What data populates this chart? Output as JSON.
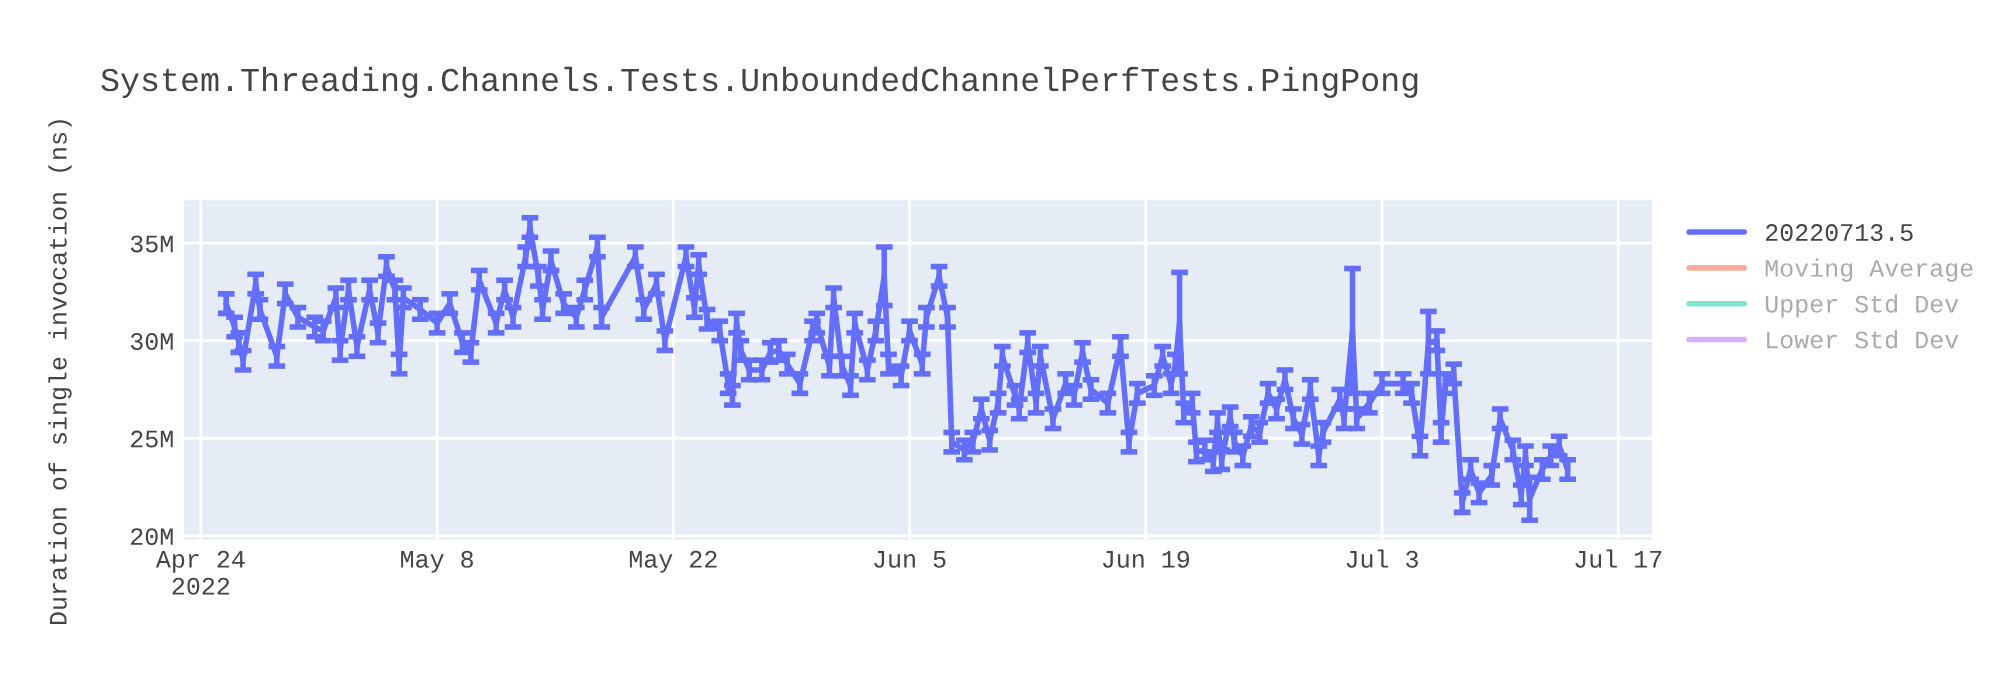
{
  "chart_data": {
    "type": "line",
    "title": "System.Threading.Channels.Tests.UnboundedChannelPerfTests.PingPong",
    "ylabel": "Duration of single invocation (ns)",
    "x": [
      "2022-04-25T12:00",
      "2022-04-26T00:00",
      "2022-04-26T06:00",
      "2022-04-26T12:00",
      "2022-04-27T06:00",
      "2022-04-27T12:00",
      "2022-04-28T12:00",
      "2022-04-29T00:00",
      "2022-04-29T18:00",
      "2022-04-30T18:00",
      "2022-05-01T06:00",
      "2022-05-02T00:00",
      "2022-05-02T06:00",
      "2022-05-02T18:00",
      "2022-05-03T06:00",
      "2022-05-04T00:00",
      "2022-05-04T12:00",
      "2022-05-05T00:00",
      "2022-05-05T12:00",
      "2022-05-05T18:00",
      "2022-05-06T00:00",
      "2022-05-07T00:00",
      "2022-05-08T00:00",
      "2022-05-08T18:00",
      "2022-05-09T12:00",
      "2022-05-10T00:00",
      "2022-05-10T12:00",
      "2022-05-11T12:00",
      "2022-05-12T00:00",
      "2022-05-12T12:00",
      "2022-05-13T06:00",
      "2022-05-13T12:00",
      "2022-05-14T00:00",
      "2022-05-14T06:00",
      "2022-05-14T18:00",
      "2022-05-15T12:00",
      "2022-05-16T06:00",
      "2022-05-16T18:00",
      "2022-05-17T12:00",
      "2022-05-17T18:00",
      "2022-05-19T18:00",
      "2022-05-20T06:00",
      "2022-05-21T00:00",
      "2022-05-21T12:00",
      "2022-05-22T18:00",
      "2022-05-23T06:00",
      "2022-05-23T12:00",
      "2022-05-24T00:00",
      "2022-05-24T18:00",
      "2022-05-25T06:00",
      "2022-05-25T12:00",
      "2022-05-25T18:00",
      "2022-05-26T00:00",
      "2022-05-26T12:00",
      "2022-05-27T06:00",
      "2022-05-27T18:00",
      "2022-05-28T06:00",
      "2022-05-28T18:00",
      "2022-05-29T12:00",
      "2022-05-30T06:00",
      "2022-05-30T12:00",
      "2022-05-31T06:00",
      "2022-05-31T12:00",
      "2022-06-01T00:00",
      "2022-06-01T12:00",
      "2022-06-01T18:00",
      "2022-06-02T12:00",
      "2022-06-03T00:00",
      "2022-06-03T12:00",
      "2022-06-03T18:00",
      "2022-06-04T12:00",
      "2022-06-05T00:00",
      "2022-06-05T18:00",
      "2022-06-06T00:00",
      "2022-06-06T18:00",
      "2022-06-07T06:00",
      "2022-06-07T12:00",
      "2022-06-08T06:00",
      "2022-06-08T18:00",
      "2022-06-09T06:00",
      "2022-06-09T18:00",
      "2022-06-10T06:00",
      "2022-06-10T12:00",
      "2022-06-11T06:00",
      "2022-06-11T12:00",
      "2022-06-12T00:00",
      "2022-06-12T12:00",
      "2022-06-12T18:00",
      "2022-06-13T12:00",
      "2022-06-14T06:00",
      "2022-06-14T18:00",
      "2022-06-15T06:00",
      "2022-06-15T18:00",
      "2022-06-16T18:00",
      "2022-06-17T12:00",
      "2022-06-18T00:00",
      "2022-06-18T12:00",
      "2022-06-19T12:00",
      "2022-06-20T00:00",
      "2022-06-20T12:00",
      "2022-06-20T18:00",
      "2022-06-21T00:00",
      "2022-06-21T06:00",
      "2022-06-21T18:00",
      "2022-06-22T00:00",
      "2022-06-22T12:00",
      "2022-06-23T00:00",
      "2022-06-23T06:00",
      "2022-06-23T12:00",
      "2022-06-24T00:00",
      "2022-06-24T06:00",
      "2022-06-24T18:00",
      "2022-06-25T06:00",
      "2022-06-25T18:00",
      "2022-06-26T06:00",
      "2022-06-26T18:00",
      "2022-06-27T06:00",
      "2022-06-27T18:00",
      "2022-06-28T06:00",
      "2022-06-28T18:00",
      "2022-06-29T06:00",
      "2022-06-29T12:00",
      "2022-06-30T12:00",
      "2022-06-30T18:00",
      "2022-07-01T06:00",
      "2022-07-01T12:00",
      "2022-07-02T06:00",
      "2022-07-03T00:00",
      "2022-07-04T06:00",
      "2022-07-04T18:00",
      "2022-07-05T06:00",
      "2022-07-05T18:00",
      "2022-07-06T06:00",
      "2022-07-06T12:00",
      "2022-07-06T18:00",
      "2022-07-07T06:00",
      "2022-07-07T18:00",
      "2022-07-08T06:00",
      "2022-07-08T18:00",
      "2022-07-09T12:00",
      "2022-07-10T00:00",
      "2022-07-10T18:00",
      "2022-07-11T06:00",
      "2022-07-11T12:00",
      "2022-07-11T18:00",
      "2022-07-12T12:00",
      "2022-07-13T00:00",
      "2022-07-13T12:00",
      "2022-07-14T00:00"
    ],
    "series": [
      {
        "name": "20220713.5",
        "color": "#636efa",
        "values": [
          31.9,
          30.7,
          29.9,
          29.0,
          32.9,
          31.6,
          29.2,
          32.4,
          31.2,
          30.7,
          30.5,
          32.2,
          29.5,
          32.6,
          29.7,
          32.6,
          30.4,
          33.8,
          32.6,
          28.8,
          32.2,
          31.6,
          30.9,
          31.9,
          29.9,
          29.4,
          33.1,
          30.9,
          32.6,
          31.2,
          34.3,
          35.8,
          33.3,
          31.6,
          34.1,
          31.9,
          31.2,
          32.6,
          34.8,
          31.2,
          34.3,
          31.6,
          32.9,
          30.0,
          34.3,
          31.7,
          33.9,
          31.1,
          30.5,
          27.8,
          27.2,
          30.9,
          29.5,
          28.5,
          28.5,
          29.4,
          29.5,
          28.8,
          27.8,
          30.5,
          30.9,
          28.7,
          32.2,
          28.7,
          27.7,
          30.9,
          28.5,
          30.5,
          33.3,
          28.8,
          28.2,
          30.5,
          28.8,
          31.2,
          33.3,
          31.2,
          24.8,
          24.4,
          24.8,
          26.5,
          24.9,
          26.8,
          29.2,
          27.2,
          26.5,
          29.9,
          26.8,
          29.2,
          26.0,
          27.8,
          27.2,
          29.4,
          27.5,
          26.8,
          29.7,
          24.8,
          27.3,
          27.7,
          29.2,
          27.8,
          28.8,
          30.9,
          26.3,
          26.8,
          24.3,
          24.4,
          23.8,
          25.8,
          23.9,
          26.1,
          24.8,
          24.1,
          25.6,
          25.3,
          27.3,
          26.5,
          28.0,
          26.0,
          25.2,
          27.5,
          24.1,
          25.3,
          27.0,
          26.0,
          30.5,
          26.0,
          26.8,
          27.8,
          27.8,
          27.3,
          24.6,
          29.9,
          30.0,
          25.3,
          27.8,
          28.3,
          21.7,
          23.4,
          22.2,
          23.1,
          26.0,
          24.4,
          22.1,
          24.1,
          21.9,
          23.4,
          24.1,
          24.6,
          23.4
        ],
        "errors": [
          0.5,
          0.5,
          0.5,
          0.5,
          0.5,
          0.5,
          0.5,
          0.5,
          0.5,
          0.5,
          0.5,
          0.5,
          0.5,
          0.5,
          0.5,
          0.5,
          0.5,
          0.5,
          0.5,
          0.5,
          0.5,
          0.5,
          0.5,
          0.5,
          0.5,
          0.5,
          0.5,
          0.5,
          0.5,
          0.5,
          0.5,
          0.5,
          0.5,
          0.5,
          0.5,
          0.5,
          0.5,
          0.5,
          0.5,
          0.5,
          0.5,
          0.5,
          0.5,
          0.5,
          0.5,
          0.5,
          0.5,
          0.5,
          0.5,
          0.5,
          0.5,
          0.5,
          0.5,
          0.5,
          0.5,
          0.5,
          0.5,
          0.5,
          0.5,
          0.5,
          0.5,
          0.5,
          0.5,
          0.5,
          0.5,
          0.5,
          0.5,
          0.5,
          1.5,
          0.5,
          0.5,
          0.5,
          0.5,
          0.5,
          0.5,
          0.5,
          0.5,
          0.5,
          0.5,
          0.5,
          0.5,
          0.5,
          0.5,
          0.5,
          0.5,
          0.5,
          0.5,
          0.5,
          0.5,
          0.5,
          0.5,
          0.5,
          0.5,
          0.5,
          0.5,
          0.5,
          0.5,
          0.5,
          0.5,
          0.5,
          0.5,
          2.6,
          0.5,
          0.5,
          0.5,
          0.5,
          0.5,
          0.5,
          0.5,
          0.5,
          0.5,
          0.5,
          0.5,
          0.5,
          0.5,
          0.5,
          0.5,
          0.5,
          0.5,
          0.5,
          0.5,
          0.5,
          0.5,
          0.5,
          3.2,
          0.5,
          0.5,
          0.5,
          0.5,
          0.5,
          0.5,
          1.6,
          0.5,
          0.5,
          0.5,
          0.5,
          0.5,
          0.5,
          0.5,
          0.5,
          0.5,
          0.5,
          0.5,
          0.5,
          1.1,
          0.5,
          0.5,
          0.5,
          0.5
        ]
      },
      {
        "name": "Moving Average",
        "color": "#f7ab9d",
        "values": [
          null,
          null,
          null,
          null,
          null,
          null,
          null,
          null,
          null,
          null,
          null,
          null,
          null,
          null,
          null,
          null,
          null,
          null,
          null,
          null,
          null,
          null,
          null,
          null,
          null,
          null,
          null,
          null,
          null,
          null,
          null,
          null,
          null,
          null,
          null,
          null,
          null,
          null,
          null,
          null,
          null,
          null,
          null,
          null,
          null,
          null,
          null,
          null,
          null,
          null,
          null,
          null,
          null,
          null,
          null,
          null,
          null,
          null,
          null,
          null,
          null,
          null,
          null,
          null,
          null,
          null,
          null,
          null,
          null,
          null,
          null,
          null,
          null,
          null,
          null,
          null,
          null,
          null,
          null,
          null,
          null,
          null,
          null,
          null,
          null,
          null,
          null,
          null,
          null,
          null,
          null,
          null,
          null,
          null,
          null,
          null,
          null,
          null,
          null,
          null,
          null,
          null,
          null,
          null,
          null,
          null,
          null,
          null,
          null,
          null,
          null,
          null,
          null,
          null,
          null,
          null,
          null,
          null,
          null,
          null,
          null,
          null,
          null,
          null,
          null,
          null,
          null,
          null,
          null,
          null,
          null,
          null,
          null,
          null,
          null,
          null,
          null,
          null,
          null,
          null,
          null,
          null,
          null,
          null,
          null,
          null,
          null,
          null,
          null
        ]
      },
      {
        "name": "Upper Std Dev",
        "color": "#80e5cb",
        "values": [
          null,
          null,
          null,
          null,
          null,
          null,
          null,
          null,
          null,
          null,
          null,
          null,
          null,
          null,
          null,
          null,
          null,
          null,
          null,
          null,
          null,
          null,
          null,
          null,
          null,
          null,
          null,
          null,
          null,
          null,
          null,
          null,
          null,
          null,
          null,
          null,
          null,
          null,
          null,
          null,
          null,
          null,
          null,
          null,
          null,
          null,
          null,
          null,
          null,
          null,
          null,
          null,
          null,
          null,
          null,
          null,
          null,
          null,
          null,
          null,
          null,
          null,
          null,
          null,
          null,
          null,
          null,
          null,
          null,
          null,
          null,
          null,
          null,
          null,
          null,
          null,
          null,
          null,
          null,
          null,
          null,
          null,
          null,
          null,
          null,
          null,
          null,
          null,
          null,
          null,
          null,
          null,
          null,
          null,
          null,
          null,
          null,
          null,
          null,
          null,
          null,
          null,
          null,
          null,
          null,
          null,
          null,
          null,
          null,
          null,
          null,
          null,
          null,
          null,
          null,
          null,
          null,
          null,
          null,
          null,
          null,
          null,
          null,
          null,
          null,
          null,
          null,
          null,
          null,
          null,
          null,
          null,
          null,
          null,
          null,
          null,
          null,
          null,
          null,
          null,
          null,
          null,
          null,
          null,
          null,
          null,
          null,
          null,
          null
        ]
      },
      {
        "name": "Lower Std Dev",
        "color": "#d5b1fc",
        "values": [
          null,
          null,
          null,
          null,
          null,
          null,
          null,
          null,
          null,
          null,
          null,
          null,
          null,
          null,
          null,
          null,
          null,
          null,
          null,
          null,
          null,
          null,
          null,
          null,
          null,
          null,
          null,
          null,
          null,
          null,
          null,
          null,
          null,
          null,
          null,
          null,
          null,
          null,
          null,
          null,
          null,
          null,
          null,
          null,
          null,
          null,
          null,
          null,
          null,
          null,
          null,
          null,
          null,
          null,
          null,
          null,
          null,
          null,
          null,
          null,
          null,
          null,
          null,
          null,
          null,
          null,
          null,
          null,
          null,
          null,
          null,
          null,
          null,
          null,
          null,
          null,
          null,
          null,
          null,
          null,
          null,
          null,
          null,
          null,
          null,
          null,
          null,
          null,
          null,
          null,
          null,
          null,
          null,
          null,
          null,
          null,
          null,
          null,
          null,
          null,
          null,
          null,
          null,
          null,
          null,
          null,
          null,
          null,
          null,
          null,
          null,
          null,
          null,
          null,
          null,
          null,
          null,
          null,
          null,
          null,
          null,
          null,
          null,
          null,
          null,
          null,
          null,
          null,
          null,
          null,
          null,
          null,
          null,
          null,
          null,
          null,
          null,
          null,
          null,
          null,
          null,
          null,
          null,
          null,
          null,
          null,
          null,
          null,
          null
        ]
      }
    ],
    "xlim": [
      "2022-04-23",
      "2022-07-19"
    ],
    "xticks": [
      {
        "value": "2022-04-24",
        "label": "Apr 24\n2022"
      },
      {
        "value": "2022-05-08",
        "label": "May 8"
      },
      {
        "value": "2022-05-22",
        "label": "May 22"
      },
      {
        "value": "2022-06-05",
        "label": "Jun 5"
      },
      {
        "value": "2022-06-19",
        "label": "Jun 19"
      },
      {
        "value": "2022-07-03",
        "label": "Jul 3"
      },
      {
        "value": "2022-07-17",
        "label": "Jul 17"
      }
    ],
    "ylim": [
      19.8,
      37.2
    ],
    "yticks": [
      {
        "value": 20,
        "label": "20M"
      },
      {
        "value": 25,
        "label": "25M"
      },
      {
        "value": 30,
        "label": "30M"
      },
      {
        "value": 35,
        "label": "35M"
      }
    ],
    "grid": true,
    "legend": "top right",
    "marker": "none",
    "line_style": "solid"
  }
}
